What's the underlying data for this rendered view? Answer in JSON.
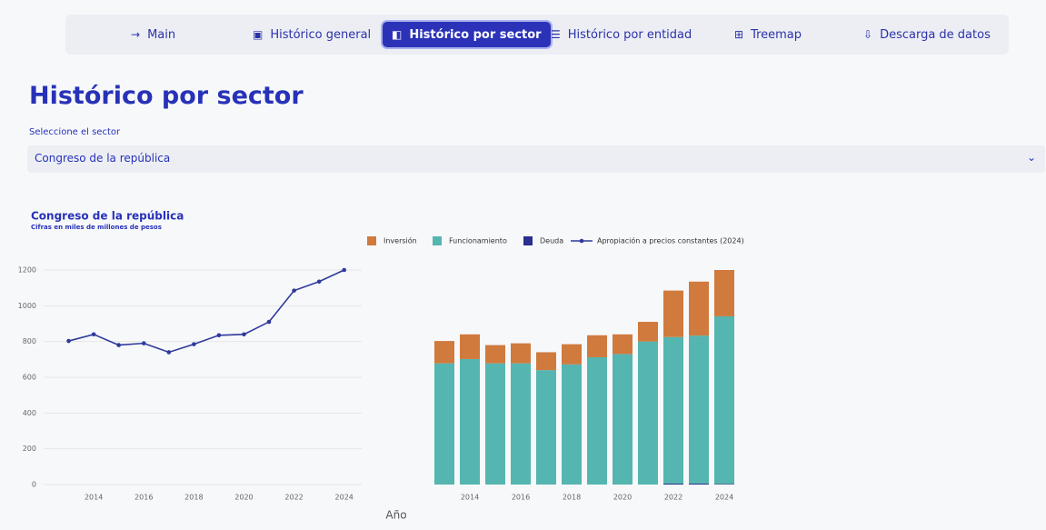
{
  "nav": {
    "items": [
      "Main",
      "Histórico general",
      "Histórico por sector",
      "Histórico por entidad",
      "Treemap",
      "Descarga de datos"
    ],
    "active": 2
  },
  "header": {
    "title": "Histórico por sector"
  },
  "selector": {
    "label": "Seleccione el sector",
    "value": "Congreso de la república"
  },
  "chart_data": [
    {
      "type": "line",
      "title": "Congreso de la república",
      "subtitle": "Cifras en miles de millones de pesos",
      "x": [
        2013,
        2014,
        2015,
        2016,
        2017,
        2018,
        2019,
        2020,
        2021,
        2022,
        2023,
        2024
      ],
      "series": [
        {
          "name": "Apropiación a precios constantes (2024)",
          "color": "#2f3a9b",
          "values": [
            803,
            840,
            780,
            790,
            740,
            785,
            835,
            840,
            910,
            1085,
            1135,
            1200
          ]
        }
      ],
      "xlim": [
        2012,
        2024.7
      ],
      "xticks": [
        2014,
        2016,
        2018,
        2020,
        2022,
        2024
      ],
      "ylim": [
        0,
        1200
      ],
      "yticks": [
        0,
        200,
        400,
        600,
        800,
        1000,
        1200
      ],
      "grid": true
    },
    {
      "type": "stacked_bar",
      "xlabel": "Año",
      "x": [
        2013,
        2014,
        2015,
        2016,
        2017,
        2018,
        2019,
        2020,
        2021,
        2022,
        2023,
        2024
      ],
      "series": [
        {
          "name": "Inversión",
          "color": "#d07a3e",
          "values": [
            125,
            138,
            102,
            112,
            100,
            113,
            123,
            110,
            110,
            260,
            302,
            259
          ]
        },
        {
          "name": "Funcionamiento",
          "color": "#55b5b0",
          "values": [
            678,
            702,
            678,
            678,
            640,
            672,
            712,
            730,
            800,
            820,
            828,
            938
          ]
        },
        {
          "name": "Deuda",
          "color": "#2b2f8f",
          "values": [
            0,
            0,
            0,
            0,
            0,
            0,
            0,
            0,
            0,
            5,
            5,
            3
          ]
        }
      ],
      "xlim": [
        2012.5,
        2024.5
      ],
      "xticks": [
        2014,
        2016,
        2018,
        2020,
        2022,
        2024
      ],
      "ylim": [
        0,
        1200
      ]
    }
  ]
}
